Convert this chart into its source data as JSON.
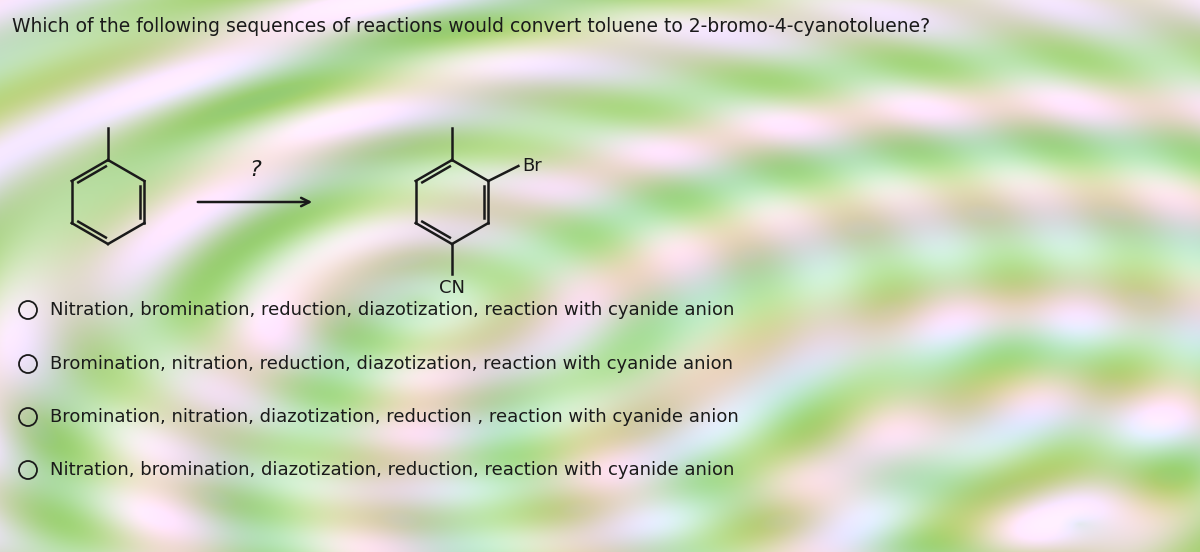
{
  "title": "Which of the following sequences of reactions would convert toluene to 2-bromo-4-cyanotoluene?",
  "title_fontsize": 13.5,
  "question_mark": "?",
  "br_label": "Br",
  "cn_label": "CN",
  "options": [
    "Nitration, bromination, reduction, diazotization, reaction with cyanide anion",
    "Bromination, nitration, reduction, diazotization, reaction with cyanide anion",
    "Bromination, nitration, diazotization, reduction , reaction with cyanide anion",
    "Nitration, bromination, diazotization, reduction, reaction with cyanide anion"
  ],
  "text_color": "#1a1a1a",
  "line_color": "#1a1a1a",
  "option_fontsize": 13,
  "fig_width": 12.0,
  "fig_height": 5.52,
  "bg_base": "#d4dfc0"
}
